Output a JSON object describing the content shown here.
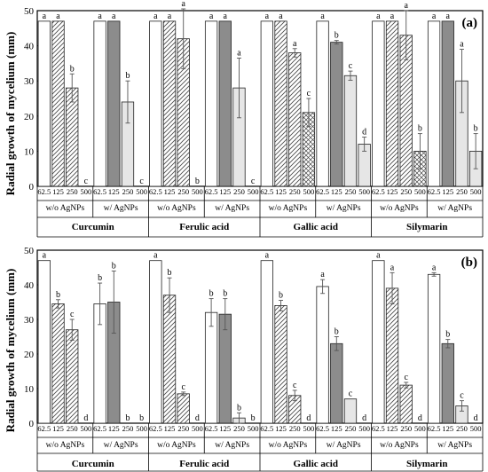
{
  "ylabel": "Radial growth of mycelium (mm)",
  "colors": {
    "axis": "#000000",
    "bar_edge": "#222222",
    "white": "#ffffff",
    "hatch": "#444444",
    "dark": "#8c8c8c",
    "light": "#e6e6e6",
    "error": "#555555"
  },
  "chart_data": [
    {
      "type": "bar",
      "panel_label": "(a)",
      "title": "",
      "ylabel": "Radial growth of mycelium (mm)",
      "ylim": [
        0,
        50
      ],
      "yticks": [
        "0",
        "10",
        "20",
        "30",
        "40",
        "50"
      ],
      "compounds": [
        "Curcumin",
        "Ferulic acid",
        "Gallic acid",
        "Silymarin"
      ],
      "treatments": [
        "w/o AgNPs",
        "w/ AgNPs"
      ],
      "concentrations": [
        "62.5",
        "125",
        "250",
        "500"
      ],
      "fills": [
        "white",
        "diag",
        "diag",
        "cross",
        "white",
        "dark",
        "light",
        "light"
      ],
      "series": [
        {
          "compound": "Curcumin",
          "values": [
            47,
            47,
            28,
            0,
            47,
            47,
            24,
            0
          ],
          "errors": [
            0,
            0,
            4,
            0,
            0,
            0,
            6,
            0
          ],
          "letters": [
            "a",
            "a",
            "b",
            "c",
            "a",
            "a",
            "b",
            "c"
          ]
        },
        {
          "compound": "Ferulic acid",
          "values": [
            47,
            47,
            42,
            0,
            47,
            47,
            28,
            0
          ],
          "errors": [
            0,
            0,
            8.5,
            0,
            0,
            0,
            8.5,
            0
          ],
          "letters": [
            "a",
            "a",
            "a",
            "b",
            "a",
            "a",
            "a",
            "c"
          ]
        },
        {
          "compound": "Gallic acid",
          "values": [
            47,
            47,
            38,
            21,
            47,
            41,
            31.5,
            12
          ],
          "errors": [
            0,
            0,
            1.2,
            4,
            0,
            0.5,
            1.3,
            2
          ],
          "letters": [
            "a",
            "a",
            "a",
            "c",
            "a",
            "b",
            "c",
            "d"
          ]
        },
        {
          "compound": "Silymarin",
          "values": [
            47,
            47,
            43,
            10,
            47,
            47,
            30,
            10
          ],
          "errors": [
            0,
            0,
            7,
            5,
            0,
            0,
            9,
            5
          ],
          "letters": [
            "a",
            "a",
            "a",
            "b",
            "a",
            "a",
            "a",
            "b"
          ]
        }
      ]
    },
    {
      "type": "bar",
      "panel_label": "(b)",
      "title": "",
      "ylabel": "Radial growth of mycelium (mm)",
      "ylim": [
        0,
        50
      ],
      "yticks": [
        "0",
        "10",
        "20",
        "30",
        "40",
        "50"
      ],
      "compounds": [
        "Curcumin",
        "Ferulic acid",
        "Gallic acid",
        "Silymarin"
      ],
      "treatments": [
        "w/o AgNPs",
        "w/ AgNPs"
      ],
      "concentrations": [
        "62.5",
        "125",
        "250",
        "500"
      ],
      "fills": [
        "white",
        "diag",
        "diag",
        "cross",
        "white",
        "dark",
        "light",
        "light"
      ],
      "series": [
        {
          "compound": "Curcumin",
          "values": [
            47,
            34.5,
            27,
            0,
            34.5,
            35,
            0,
            0
          ],
          "errors": [
            0,
            1.2,
            3,
            0,
            6,
            9,
            0,
            0
          ],
          "letters": [
            "a",
            "b",
            "c",
            "d",
            "b",
            "b",
            "b",
            "b"
          ]
        },
        {
          "compound": "Ferulic acid",
          "values": [
            47,
            37,
            8.5,
            0,
            32,
            31.5,
            1.5,
            0
          ],
          "errors": [
            0,
            5,
            0.5,
            0,
            4,
            4.5,
            1.5,
            0
          ],
          "letters": [
            "a",
            "b",
            "c",
            "d",
            "b",
            "b",
            "b",
            "b"
          ]
        },
        {
          "compound": "Gallic acid",
          "values": [
            47,
            34,
            8,
            0,
            39.5,
            23,
            7,
            0
          ],
          "errors": [
            0,
            1.5,
            1.5,
            0,
            2,
            2,
            0,
            0
          ],
          "letters": [
            "a",
            "b",
            "c",
            "d",
            "a",
            "b",
            "c",
            "d"
          ]
        },
        {
          "compound": "Silymarin",
          "values": [
            47,
            39,
            11,
            0,
            43,
            23,
            5,
            0
          ],
          "errors": [
            0,
            4.5,
            0.8,
            0,
            0.5,
            1.2,
            1.5,
            0
          ],
          "letters": [
            "a",
            "a",
            "c",
            "d",
            "a",
            "b",
            "c",
            "d"
          ]
        }
      ]
    }
  ]
}
